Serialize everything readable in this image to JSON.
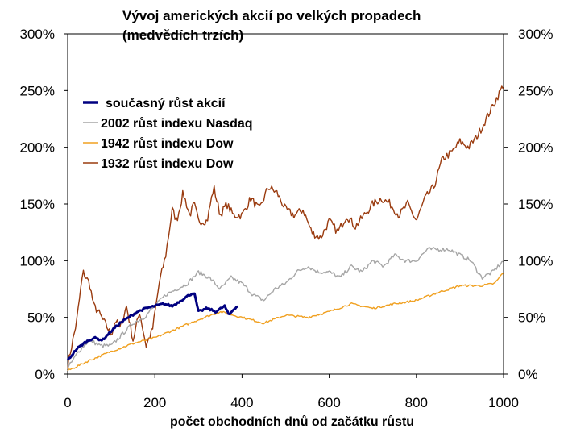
{
  "chart_data": {
    "type": "line",
    "title_line1": "Vývoj amerických akcií po velkých propadech",
    "title_line2": "(medvědích trzích)",
    "xlabel": "počet obchodních dnů od začátku růstu",
    "ylabel": "",
    "xlim": [
      0,
      1000
    ],
    "ylim": [
      0,
      300
    ],
    "x_ticks": [
      0,
      200,
      400,
      600,
      800,
      1000
    ],
    "y_ticks": [
      0,
      50,
      100,
      150,
      200,
      250,
      300
    ],
    "y_tick_labels": [
      "0%",
      "50%",
      "100%",
      "150%",
      "200%",
      "250%",
      "300%"
    ],
    "grid": false,
    "legend_position": "top-left",
    "series": [
      {
        "name": "1932 růst indexu Dow",
        "color": "#9a3b0f",
        "x": [
          0,
          20,
          35,
          50,
          60,
          70,
          85,
          100,
          110,
          120,
          135,
          150,
          165,
          180,
          195,
          210,
          225,
          240,
          250,
          265,
          280,
          290,
          300,
          320,
          335,
          350,
          365,
          380,
          400,
          420,
          440,
          460,
          480,
          500,
          520,
          540,
          560,
          580,
          600,
          620,
          640,
          660,
          680,
          700,
          720,
          740,
          760,
          780,
          800,
          820,
          840,
          860,
          880,
          900,
          920,
          940,
          960,
          980,
          1000
        ],
        "values": [
          8,
          45,
          90,
          80,
          60,
          55,
          45,
          35,
          48,
          40,
          60,
          30,
          55,
          25,
          40,
          80,
          105,
          145,
          135,
          160,
          140,
          150,
          135,
          135,
          165,
          140,
          150,
          140,
          140,
          155,
          145,
          165,
          160,
          145,
          140,
          145,
          125,
          120,
          135,
          125,
          140,
          130,
          140,
          150,
          155,
          150,
          140,
          150,
          135,
          155,
          165,
          190,
          195,
          205,
          200,
          210,
          225,
          240,
          255
        ]
      },
      {
        "name": "2002 růst indexu Nasdaq",
        "color": "#a6a6a6",
        "x": [
          0,
          25,
          50,
          75,
          100,
          125,
          150,
          175,
          200,
          225,
          250,
          275,
          300,
          325,
          350,
          375,
          400,
          425,
          450,
          475,
          500,
          525,
          550,
          575,
          600,
          625,
          650,
          675,
          700,
          725,
          750,
          775,
          800,
          825,
          850,
          875,
          900,
          925,
          950,
          975,
          1000
        ],
        "values": [
          5,
          20,
          30,
          25,
          25,
          35,
          45,
          50,
          60,
          70,
          75,
          80,
          90,
          85,
          75,
          85,
          80,
          70,
          65,
          75,
          80,
          90,
          95,
          90,
          90,
          85,
          95,
          90,
          100,
          95,
          105,
          100,
          100,
          110,
          110,
          110,
          105,
          100,
          85,
          90,
          100
        ]
      },
      {
        "name": "1942 růst indexu Dow",
        "color": "#f0a020",
        "x": [
          0,
          50,
          100,
          150,
          200,
          250,
          300,
          350,
          400,
          450,
          500,
          550,
          600,
          650,
          700,
          750,
          800,
          850,
          900,
          950,
          980,
          1000
        ],
        "values": [
          3,
          12,
          20,
          27,
          32,
          40,
          48,
          55,
          50,
          45,
          52,
          50,
          55,
          62,
          58,
          62,
          65,
          72,
          78,
          78,
          80,
          90
        ]
      },
      {
        "name": "současný růst akcií",
        "color": "#000080",
        "x": [
          0,
          20,
          40,
          60,
          80,
          100,
          120,
          140,
          160,
          180,
          200,
          220,
          240,
          260,
          280,
          290,
          300,
          320,
          340,
          360,
          370,
          380,
          390
        ],
        "values": [
          12,
          22,
          28,
          32,
          30,
          38,
          45,
          50,
          55,
          58,
          60,
          62,
          60,
          65,
          70,
          72,
          55,
          58,
          55,
          60,
          52,
          57,
          60
        ]
      }
    ]
  }
}
